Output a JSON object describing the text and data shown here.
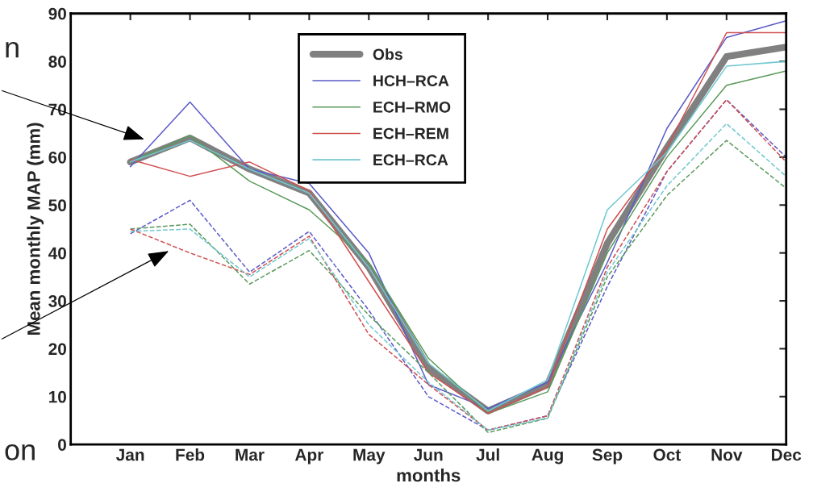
{
  "chart_data": {
    "type": "line",
    "xlabel": "months",
    "ylabel": "Mean monthly MAP (mm)",
    "categories": [
      "Jan",
      "Feb",
      "Mar",
      "Apr",
      "May",
      "Jun",
      "Jul",
      "Aug",
      "Sep",
      "Oct",
      "Nov",
      "Dec"
    ],
    "ylim": [
      0,
      90
    ],
    "yticks": [
      0,
      10,
      20,
      30,
      40,
      50,
      60,
      70,
      80,
      90
    ],
    "grid": false,
    "legend": "top",
    "marker": "none",
    "annotations": [
      "n",
      "on"
    ],
    "series": [
      {
        "name": "Obs",
        "color": "#808080",
        "line_style": "solid",
        "values": [
          59,
          64,
          57.5,
          52.5,
          37,
          16,
          7,
          12.5,
          42,
          62,
          81,
          83
        ]
      },
      {
        "name": "HCH–RCA",
        "color": "#5b5bc8",
        "line_style": "solid",
        "values": [
          58,
          71.5,
          57.5,
          54.5,
          40,
          12.5,
          7.5,
          13,
          38,
          66,
          85,
          88.5
        ]
      },
      {
        "name": "ECH–RMO",
        "color": "#5a9a5a",
        "line_style": "solid",
        "values": [
          59,
          64.5,
          55,
          49,
          38,
          18,
          6.5,
          11,
          40,
          60,
          75,
          78
        ]
      },
      {
        "name": "ECH–REM",
        "color": "#d05050",
        "line_style": "solid",
        "values": [
          59.5,
          56,
          59,
          53,
          34,
          15,
          6.5,
          12,
          45,
          62,
          86,
          86
        ]
      },
      {
        "name": "ECH–RCA",
        "color": "#70c8d0",
        "line_style": "solid",
        "values": [
          59,
          63.5,
          57.5,
          52.5,
          37,
          17,
          7,
          13.5,
          49,
          61,
          79,
          80
        ]
      },
      {
        "color": "#5b5bc8",
        "line_style": "dashed",
        "values": [
          44,
          51,
          36,
          44.5,
          28,
          10,
          3,
          6,
          33,
          57,
          72,
          60
        ]
      },
      {
        "color": "#5a9a5a",
        "line_style": "dashed",
        "values": [
          45,
          46,
          33.5,
          40.5,
          27,
          15,
          2.5,
          5.5,
          35,
          52,
          63.5,
          53.5
        ]
      },
      {
        "color": "#d05050",
        "line_style": "dashed",
        "values": [
          45,
          40,
          35.5,
          43.5,
          23,
          12.5,
          3,
          6,
          37,
          57,
          72,
          59
        ]
      },
      {
        "color": "#70c8d0",
        "line_style": "dashed",
        "values": [
          44.5,
          45,
          35,
          43,
          25,
          13,
          3,
          5.5,
          36,
          54,
          67,
          56
        ]
      }
    ]
  }
}
